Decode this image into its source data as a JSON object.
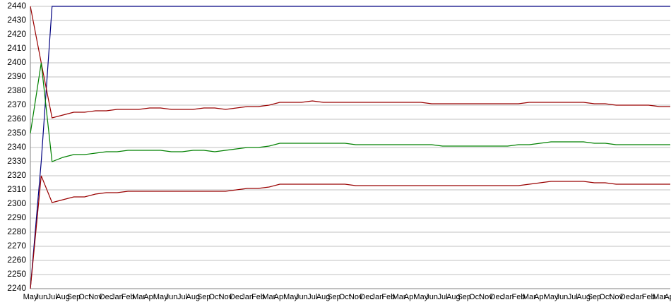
{
  "chart_data": {
    "type": "line",
    "categories": [
      "May",
      "Jun",
      "Jul",
      "Aug",
      "Sep",
      "Oct",
      "Nov",
      "Dec",
      "Jan",
      "Feb",
      "Mar",
      "Apr",
      "May",
      "Jun",
      "Jul",
      "Aug",
      "Sep",
      "Oct",
      "Nov",
      "Dec",
      "Jan",
      "Feb",
      "Mar",
      "Apr",
      "May",
      "Jun",
      "Jul",
      "Aug",
      "Sep",
      "Oct",
      "Nov",
      "Dec",
      "Jan",
      "Feb",
      "Mar",
      "Apr",
      "May",
      "Jun",
      "Jul",
      "Aug",
      "Sep",
      "Oct",
      "Nov",
      "Dec",
      "Jan",
      "Feb",
      "Mar",
      "Apr",
      "May",
      "Jun",
      "Jul",
      "Aug",
      "Sep",
      "Oct",
      "Nov",
      "Dec",
      "Jan",
      "Feb",
      "Mar",
      "Apr"
    ],
    "series": [
      {
        "color": "#000080",
        "values": [
          2240,
          2330,
          2440,
          2440,
          2440,
          2440,
          2440,
          2440,
          2440,
          2440,
          2440,
          2440,
          2440,
          2440,
          2440,
          2440,
          2440,
          2440,
          2440,
          2440,
          2440,
          2440,
          2440,
          2440,
          2440,
          2440,
          2440,
          2440,
          2440,
          2440,
          2440,
          2440,
          2440,
          2440,
          2440,
          2440,
          2440,
          2440,
          2440,
          2440,
          2440,
          2440,
          2440,
          2440,
          2440,
          2440,
          2440,
          2440,
          2440,
          2440,
          2440,
          2440,
          2440,
          2440,
          2440,
          2440,
          2440,
          2440,
          2440,
          2440
        ]
      },
      {
        "color": "#990000",
        "values": [
          2440,
          2400,
          2361,
          2363,
          2365,
          2365,
          2366,
          2366,
          2367,
          2367,
          2367,
          2368,
          2368,
          2367,
          2367,
          2367,
          2368,
          2368,
          2367,
          2368,
          2369,
          2369,
          2370,
          2372,
          2372,
          2372,
          2373,
          2372,
          2372,
          2372,
          2372,
          2372,
          2372,
          2372,
          2372,
          2372,
          2372,
          2371,
          2371,
          2371,
          2371,
          2371,
          2371,
          2371,
          2371,
          2371,
          2372,
          2372,
          2372,
          2372,
          2372,
          2372,
          2371,
          2371,
          2370,
          2370,
          2370,
          2370,
          2369,
          2369
        ]
      },
      {
        "color": "#008000",
        "values": [
          2350,
          2400,
          2330,
          2333,
          2335,
          2335,
          2336,
          2337,
          2337,
          2338,
          2338,
          2338,
          2338,
          2337,
          2337,
          2338,
          2338,
          2337,
          2338,
          2339,
          2340,
          2340,
          2341,
          2343,
          2343,
          2343,
          2343,
          2343,
          2343,
          2343,
          2342,
          2342,
          2342,
          2342,
          2342,
          2342,
          2342,
          2342,
          2341,
          2341,
          2341,
          2341,
          2341,
          2341,
          2341,
          2342,
          2342,
          2343,
          2344,
          2344,
          2344,
          2344,
          2343,
          2343,
          2342,
          2342,
          2342,
          2342,
          2342,
          2342
        ]
      },
      {
        "color": "#990000",
        "values": [
          2240,
          2320,
          2301,
          2303,
          2305,
          2305,
          2307,
          2308,
          2308,
          2309,
          2309,
          2309,
          2309,
          2309,
          2309,
          2309,
          2309,
          2309,
          2309,
          2310,
          2311,
          2311,
          2312,
          2314,
          2314,
          2314,
          2314,
          2314,
          2314,
          2314,
          2313,
          2313,
          2313,
          2313,
          2313,
          2313,
          2313,
          2313,
          2313,
          2313,
          2313,
          2313,
          2313,
          2313,
          2313,
          2313,
          2314,
          2315,
          2316,
          2316,
          2316,
          2316,
          2315,
          2315,
          2314,
          2314,
          2314,
          2314,
          2314,
          2314
        ]
      }
    ],
    "ylim": [
      2240,
      2440
    ],
    "yticks": [
      2240,
      2250,
      2260,
      2270,
      2280,
      2290,
      2300,
      2310,
      2320,
      2330,
      2340,
      2350,
      2360,
      2370,
      2380,
      2390,
      2400,
      2410,
      2420,
      2430,
      2440
    ],
    "grid": true
  }
}
